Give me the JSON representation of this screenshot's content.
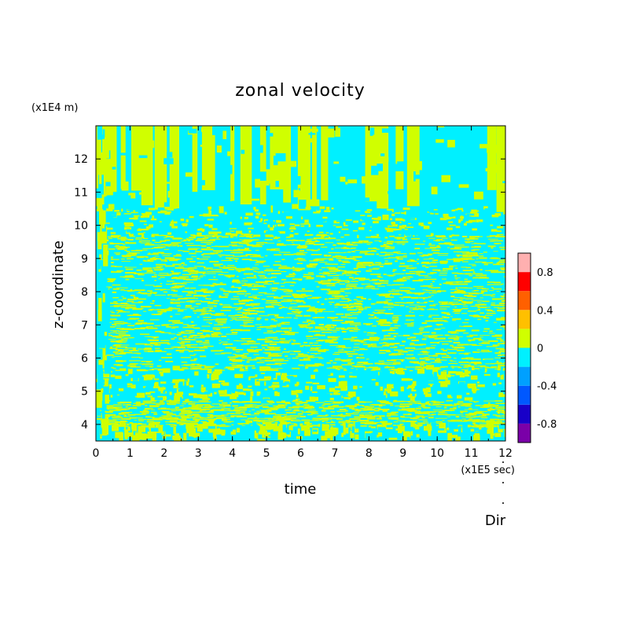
{
  "chart_data": {
    "type": "heatmap",
    "title": "zonal velocity",
    "xlabel": "time",
    "ylabel": "z-coordinate",
    "x_unit": "(x1E5 sec)",
    "y_unit": "(x1E4 m)",
    "xlim": [
      0,
      12
    ],
    "ylim": [
      3.5,
      13
    ],
    "x_ticks": [
      "0",
      "1",
      "2",
      "3",
      "4",
      "5",
      "6",
      "7",
      "8",
      "9",
      "10",
      "11",
      "12"
    ],
    "y_ticks": [
      "4",
      "5",
      "6",
      "7",
      "8",
      "9",
      "10",
      "11",
      "12"
    ],
    "colorbar": {
      "levels": [
        -1.0,
        -0.8,
        -0.6,
        -0.4,
        -0.2,
        0.0,
        0.2,
        0.4,
        0.6,
        0.8,
        1.0
      ],
      "colors": [
        "#7a00a8",
        "#1800c8",
        "#0058ff",
        "#00a0ff",
        "#00f0ff",
        "#d0ff00",
        "#ffc000",
        "#ff6000",
        "#ff0000",
        "#ffb0b0"
      ],
      "tick_labels": [
        "0.8",
        "0.4",
        "0",
        "-0.4",
        "-0.8"
      ],
      "tick_values": [
        0.8,
        0.4,
        0.0,
        -0.4,
        -0.8
      ]
    },
    "field_regions": [
      {
        "z_range": [
          10.0,
          13.0
        ],
        "description_values": [
          -0.2,
          0.2
        ]
      },
      {
        "z_range": [
          5.5,
          10.0
        ],
        "description_values": [
          -0.2,
          0.2
        ]
      },
      {
        "z_range": [
          3.5,
          5.5
        ],
        "description_values": [
          -0.2,
          0.2
        ]
      }
    ],
    "dominant_colors": {
      "negative": "#00f0ff",
      "positive": "#d0ff00"
    }
  },
  "annotations": {
    "dir_label": "Dir"
  }
}
